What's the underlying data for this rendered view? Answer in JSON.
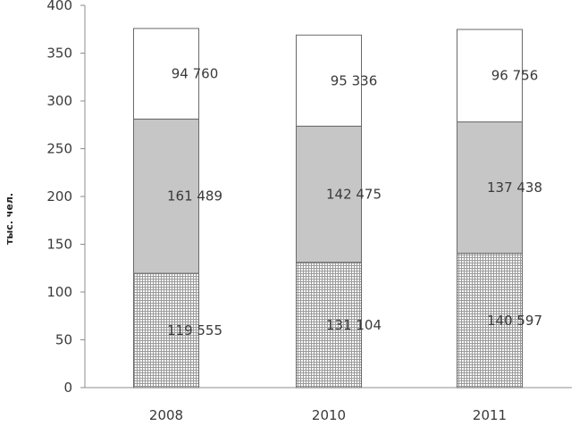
{
  "chart_data": {
    "type": "bar",
    "stacked": true,
    "categories": [
      "2008",
      "2010",
      "2011"
    ],
    "series": [
      {
        "values": [
          119.555,
          131.104,
          140.597
        ],
        "labels": [
          "119 555",
          "131 104",
          "140 597"
        ],
        "fill": "pattern-grid"
      },
      {
        "values": [
          161.489,
          142.475,
          137.438
        ],
        "labels": [
          "161 489",
          "142 475",
          "137 438"
        ],
        "fill": "#c6c6c6"
      },
      {
        "values": [
          94.76,
          95.336,
          96.756
        ],
        "labels": [
          "94 760",
          "95 336",
          "96 756"
        ],
        "fill": "#ffffff"
      }
    ],
    "ylabel": "тыс. чел.",
    "ylim": [
      0,
      400
    ],
    "yticks": [
      0,
      50,
      100,
      150,
      200,
      250,
      300,
      350,
      400
    ],
    "grid": false,
    "legend": "none",
    "colors": {
      "axis": "#8c8c8c",
      "bar_stroke": "#6a6a6a",
      "pattern_line": "#9a9a9a"
    }
  }
}
